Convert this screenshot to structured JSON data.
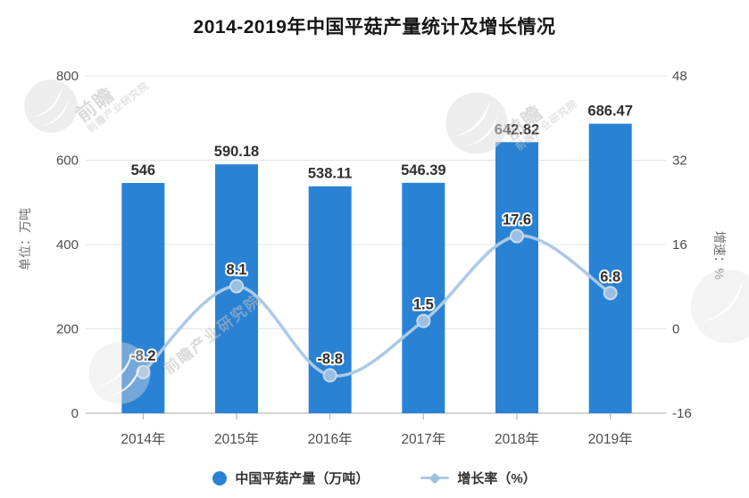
{
  "title": "2014-2019年中国平菇产量统计及增长情况",
  "watermark": {
    "text": "前瞻产业研究院",
    "brand": "前瞻"
  },
  "chart_data": {
    "type": "bar",
    "title": "2014-2019年中国平菇产量统计及增长情况",
    "categories": [
      "2014年",
      "2015年",
      "2016年",
      "2017年",
      "2018年",
      "2019年"
    ],
    "series": [
      {
        "name": "中国平菇产量（万吨）",
        "type": "bar",
        "axis": "left",
        "color": "#2a82d4",
        "values": [
          546,
          590.18,
          538.11,
          546.39,
          642.82,
          686.47
        ],
        "labels": [
          "546",
          "590.18",
          "538.11",
          "546.39",
          "642.82",
          "686.47"
        ]
      },
      {
        "name": "增长率（%）",
        "type": "line",
        "axis": "right",
        "color": "#abc9e7",
        "marker_color": "#9bbfe1",
        "values": [
          -8.2,
          8.1,
          -8.8,
          1.5,
          17.6,
          6.8
        ],
        "labels": [
          "-8.2",
          "8.1",
          "-8.8",
          "1.5",
          "17.6",
          "6.8"
        ]
      }
    ],
    "left_axis": {
      "name": "单位：万吨",
      "min": 0,
      "max": 800,
      "ticks": [
        0,
        200,
        400,
        600,
        800
      ]
    },
    "right_axis": {
      "name": "增速：%",
      "min": -16,
      "max": 48,
      "ticks": [
        -16,
        0,
        16,
        32,
        48
      ]
    },
    "legend": {
      "items": [
        "中国平菇产量（万吨）",
        "增长率（%）"
      ],
      "position": "bottom"
    },
    "grid": true,
    "colors": {
      "grid_line": "#e4e4e4",
      "axis_line": "#a9a9a9",
      "tick_label": "#4d4d4d",
      "value_label": "#303030"
    }
  }
}
